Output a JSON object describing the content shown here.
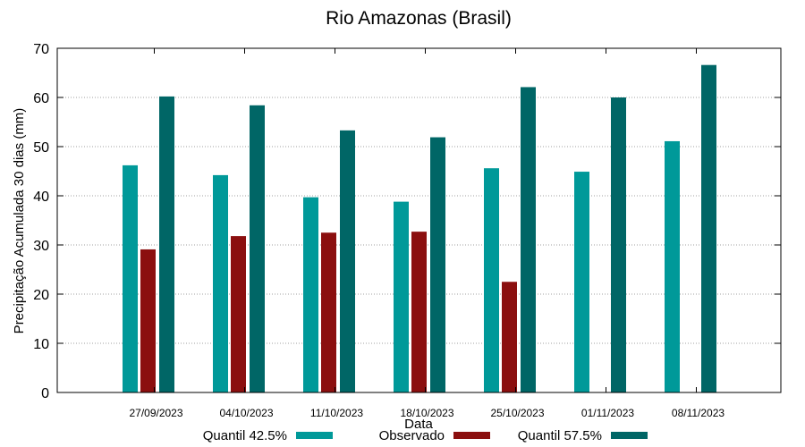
{
  "chart_data": {
    "type": "bar",
    "title": "Rio Amazonas (Brasil)",
    "xlabel": "Data",
    "ylabel": "Precipitação Acumulada 30 dias (mm)",
    "ylim": [
      0,
      70
    ],
    "yticks": [
      0,
      10,
      20,
      30,
      40,
      50,
      60,
      70
    ],
    "grid": true,
    "legend_position": "bottom",
    "categories": [
      "27/09/2023",
      "04/10/2023",
      "11/10/2023",
      "18/10/2023",
      "25/10/2023",
      "01/11/2023",
      "08/11/2023"
    ],
    "series": [
      {
        "name": "Quantil 42.5%",
        "color": "#009999",
        "values": [
          46.2,
          44.2,
          39.7,
          38.8,
          45.6,
          44.9,
          51.1
        ]
      },
      {
        "name": "Observado",
        "color": "#8b0f0f",
        "values": [
          29.1,
          31.8,
          32.5,
          32.7,
          22.5,
          null,
          null
        ]
      },
      {
        "name": "Quantil 57.5%",
        "color": "#006666",
        "values": [
          60.2,
          58.4,
          53.3,
          51.9,
          62.1,
          60.0,
          66.6
        ]
      }
    ]
  }
}
